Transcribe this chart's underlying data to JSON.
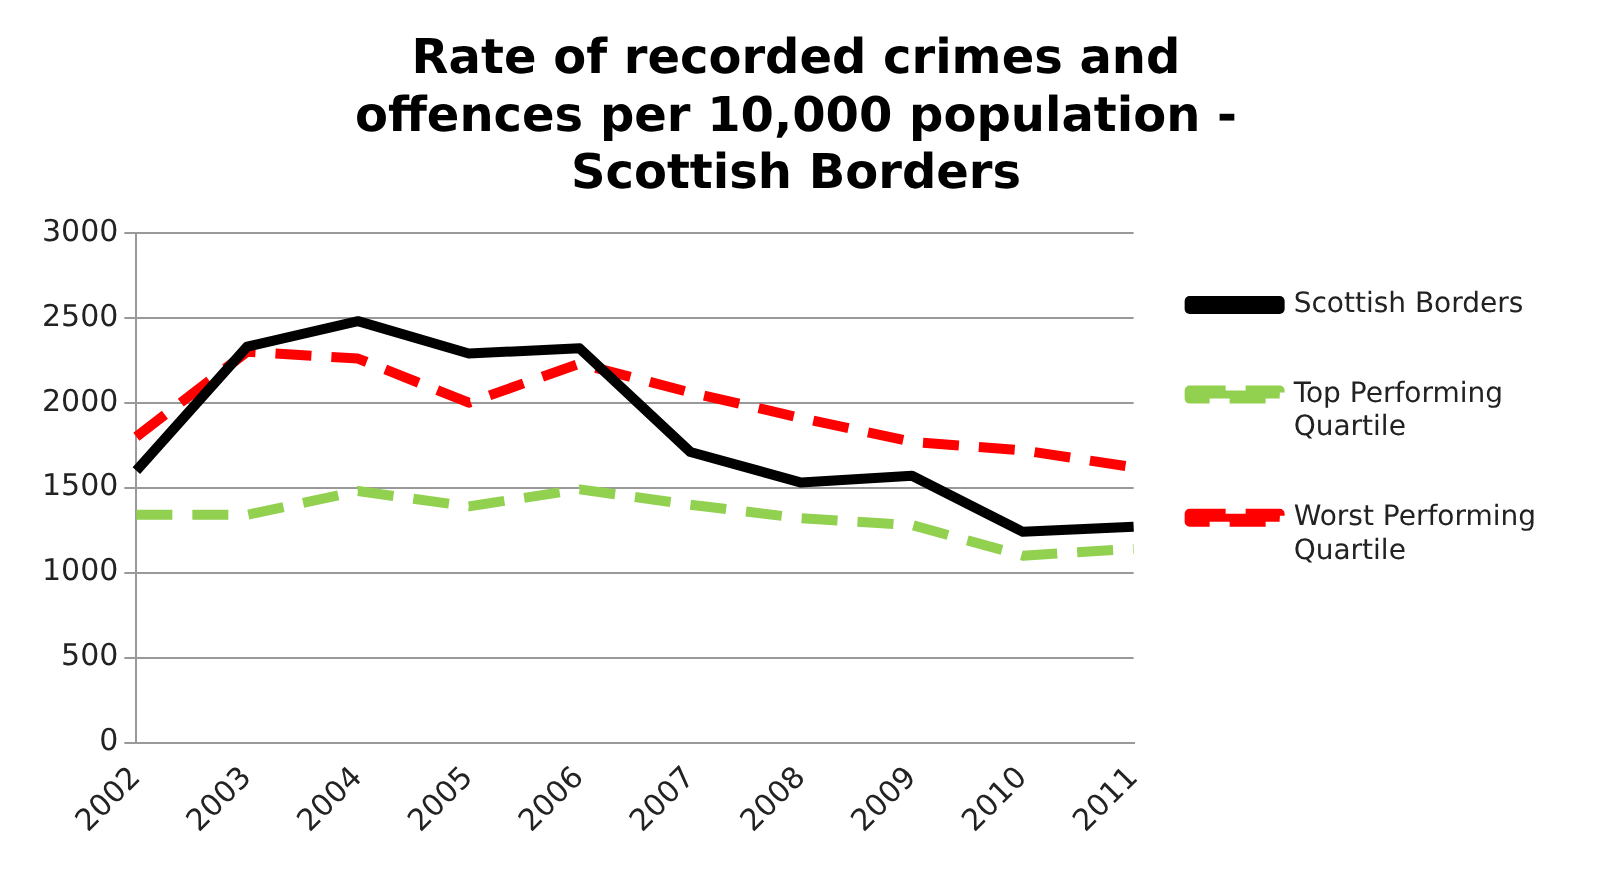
{
  "chart_data": {
    "type": "line",
    "title": "Rate of recorded crimes and offences per 10,000 population - Scottish Borders",
    "categories": [
      "2002",
      "2003",
      "2004",
      "2005",
      "2006",
      "2007",
      "2008",
      "2009",
      "2010",
      "2011"
    ],
    "series": [
      {
        "name": "Scottish Borders",
        "color": "#000000",
        "line_style": "solid",
        "values": [
          1600,
          2330,
          2480,
          2290,
          2320,
          1710,
          1530,
          1570,
          1240,
          1270
        ]
      },
      {
        "name": "Top Performing Quartile",
        "color": "#92d050",
        "line_style": "dashed",
        "values": [
          1340,
          1340,
          1480,
          1390,
          1490,
          1400,
          1320,
          1280,
          1100,
          1140
        ]
      },
      {
        "name": "Worst Performing Quartile",
        "color": "#ff0000",
        "line_style": "dashed",
        "values": [
          1800,
          2300,
          2260,
          2000,
          2230,
          2060,
          1910,
          1770,
          1720,
          1620
        ]
      }
    ],
    "ylim": [
      0,
      3000
    ],
    "yticks": [
      0,
      500,
      1000,
      1500,
      2000,
      2500,
      3000
    ],
    "grid": "y",
    "legend": "right",
    "marker": "none"
  }
}
